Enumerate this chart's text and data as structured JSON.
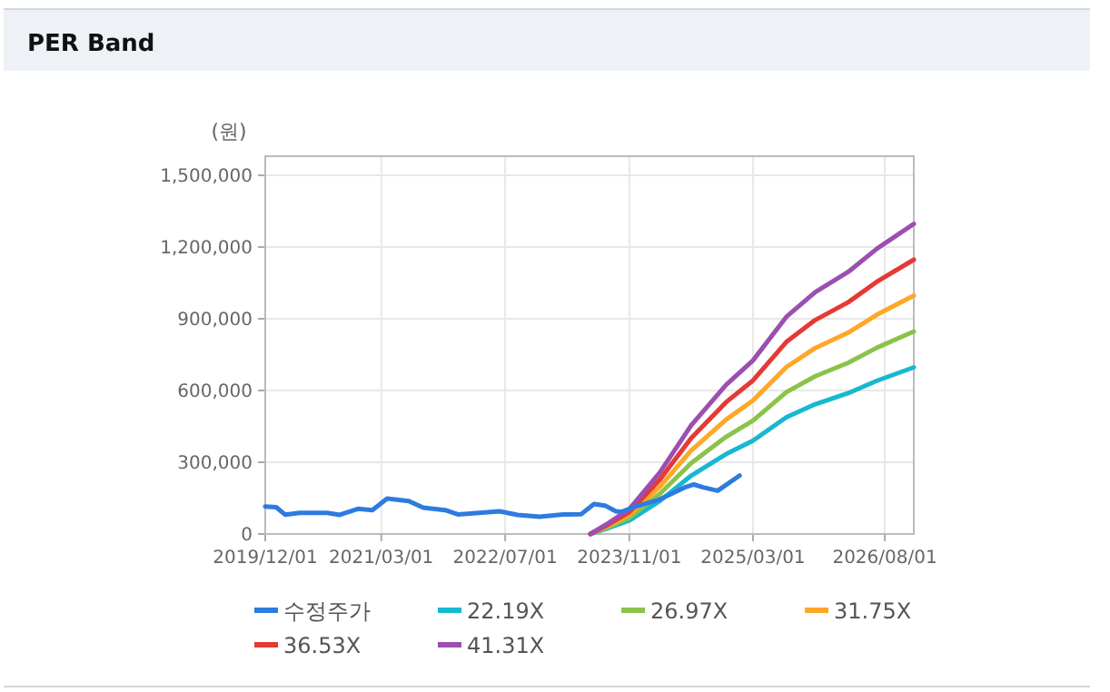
{
  "chart_data": {
    "type": "line",
    "title": "PER Band",
    "ylabel": "(원)",
    "xlim": [
      "2019-12-01",
      "2026-11-23"
    ],
    "xticks": [
      {
        "value": "2019-12-01",
        "label": "2019/12/01"
      },
      {
        "value": "2021-03-01",
        "label": "2021/03/01"
      },
      {
        "value": "2022-07-01",
        "label": "2022/07/01"
      },
      {
        "value": "2023-11-01",
        "label": "2023/11/01"
      },
      {
        "value": "2025-03-01",
        "label": "2025/03/01"
      },
      {
        "value": "2026-08-01",
        "label": "2026/08/01"
      }
    ],
    "ylim": [
      0,
      1580000
    ],
    "yticks": [
      {
        "value": 0,
        "label": "0"
      },
      {
        "value": 300000,
        "label": "300,000"
      },
      {
        "value": 600000,
        "label": "600,000"
      },
      {
        "value": 900000,
        "label": "900,000"
      },
      {
        "value": 1200000,
        "label": "1,200,000"
      },
      {
        "value": 1500000,
        "label": "1,500,000"
      }
    ],
    "grid": true,
    "legend": "bottom",
    "line_style": "solid",
    "marker": "none",
    "series": [
      {
        "name": "수정주가",
        "color": "#2e7be0",
        "x": [
          "2019-12-01",
          "2020-01-13",
          "2020-02-17",
          "2020-04-15",
          "2020-07-31",
          "2020-09-19",
          "2020-11-29",
          "2021-01-25",
          "2021-03-24",
          "2021-06-17",
          "2021-08-13",
          "2021-11-07",
          "2021-12-27",
          "2022-04-13",
          "2022-06-09",
          "2022-08-19",
          "2022-11-13",
          "2023-02-14",
          "2023-04-26",
          "2023-06-15",
          "2023-07-28",
          "2023-09-09",
          "2023-10-01",
          "2023-11-27",
          "2024-02-27",
          "2024-06-06",
          "2024-07-12",
          "2024-08-17",
          "2024-10-13",
          "2025-01-07"
        ],
        "values": [
          115000,
          112000,
          81000,
          88000,
          88000,
          80000,
          105000,
          100000,
          148000,
          138000,
          110000,
          100000,
          82000,
          90000,
          95000,
          80000,
          72000,
          82000,
          83000,
          125000,
          119000,
          95000,
          93000,
          115000,
          144000,
          195000,
          207000,
          195000,
          181000,
          244000
        ]
      },
      {
        "name": "22.19X",
        "color": "#17b8d0",
        "x": [
          "2023-06-01",
          "2023-08-01",
          "2023-11-01",
          "2024-03-01",
          "2024-07-01",
          "2024-11-15",
          "2025-03-01",
          "2025-07-10",
          "2025-11-01",
          "2026-03-10",
          "2026-07-01",
          "2026-11-23"
        ],
        "values": [
          0,
          21000,
          56000,
          139000,
          244000,
          334000,
          390000,
          488000,
          543000,
          589000,
          641000,
          697000
        ]
      },
      {
        "name": "26.97X",
        "color": "#8bc34a",
        "x": [
          "2023-06-01",
          "2023-08-01",
          "2023-11-01",
          "2024-03-01",
          "2024-07-01",
          "2024-11-15",
          "2025-03-01",
          "2025-07-10",
          "2025-11-01",
          "2026-03-10",
          "2026-07-01",
          "2026-11-23"
        ],
        "values": [
          0,
          25000,
          68000,
          169000,
          296000,
          406000,
          474000,
          593000,
          660000,
          716000,
          779000,
          847000
        ]
      },
      {
        "name": "31.75X",
        "color": "#ffa726",
        "x": [
          "2023-06-01",
          "2023-08-01",
          "2023-11-01",
          "2024-03-01",
          "2024-07-01",
          "2024-11-15",
          "2025-03-01",
          "2025-07-10",
          "2025-11-01",
          "2026-03-10",
          "2026-07-01",
          "2026-11-23"
        ],
        "values": [
          0,
          30000,
          80000,
          199000,
          349000,
          478000,
          558000,
          698000,
          778000,
          842000,
          917000,
          997000
        ]
      },
      {
        "name": "36.53X",
        "color": "#e53935",
        "x": [
          "2023-06-01",
          "2023-08-01",
          "2023-11-01",
          "2024-03-01",
          "2024-07-01",
          "2024-11-15",
          "2025-03-01",
          "2025-07-10",
          "2025-11-01",
          "2026-03-10",
          "2026-07-01",
          "2026-11-23"
        ],
        "values": [
          0,
          34000,
          92000,
          229000,
          401000,
          551000,
          642000,
          803000,
          895000,
          969000,
          1055000,
          1147000
        ]
      },
      {
        "name": "41.31X",
        "color": "#9c4fb0",
        "x": [
          "2023-06-01",
          "2023-08-01",
          "2023-11-01",
          "2024-03-01",
          "2024-07-01",
          "2024-11-15",
          "2025-03-01",
          "2025-07-10",
          "2025-11-01",
          "2026-03-10",
          "2026-07-01",
          "2026-11-23"
        ],
        "values": [
          0,
          39000,
          104000,
          259000,
          454000,
          623000,
          726000,
          908000,
          1012000,
          1096000,
          1193000,
          1297000
        ]
      }
    ]
  }
}
